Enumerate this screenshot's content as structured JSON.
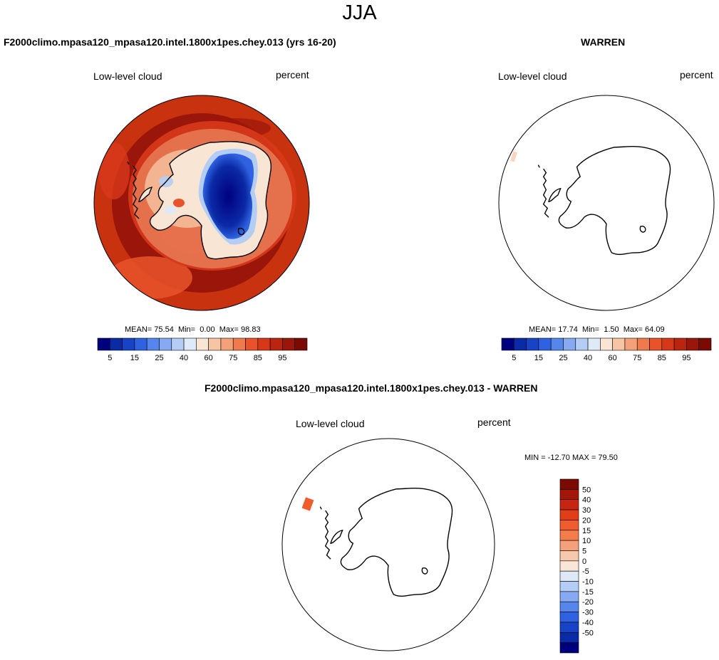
{
  "figure": {
    "title": "JJA"
  },
  "panels": {
    "model": {
      "title": "F2000climo.mpasa120_mpasa120.intel.1800x1pes.chey.013 (yrs 16-20)",
      "variable": "Low-level cloud",
      "units": "percent",
      "stats": {
        "mean": "75.54",
        "min": "0.00",
        "max": "98.83"
      }
    },
    "obs": {
      "title": "WARREN",
      "variable": "Low-level cloud",
      "units": "percent",
      "stats": {
        "mean": "17.74",
        "min": "1.50",
        "max": "64.09"
      }
    },
    "diff": {
      "title": "F2000climo.mpasa120_mpasa120.intel.1800x1pes.chey.013 - WARREN",
      "variable": "Low-level cloud",
      "units": "percent",
      "stats": {
        "min": "-12.70",
        "max": "79.50"
      }
    }
  },
  "labels": {
    "mean": "MEAN=",
    "min": "Min=",
    "max": "Max=",
    "min_upper": "MIN =",
    "max_upper": "MAX ="
  },
  "colorbar_abs": {
    "colors": [
      "#00007f",
      "#0b2aa6",
      "#1744c6",
      "#2f62e0",
      "#5586ec",
      "#86a9f2",
      "#b4cdf5",
      "#dfeaf8",
      "#f9e5d4",
      "#f6c5a4",
      "#f3a178",
      "#ef7a4e",
      "#e8532c",
      "#d8381a",
      "#ba2510",
      "#9b160a",
      "#7a0b04"
    ],
    "tick_labels": [
      "5",
      "15",
      "25",
      "40",
      "60",
      "75",
      "85",
      "95"
    ]
  },
  "colorbar_diff": {
    "colors": [
      "#7a0b04",
      "#a4160a",
      "#c62611",
      "#e03d18",
      "#f15c2c",
      "#f47c4a",
      "#f5a07a",
      "#f7c8ab",
      "#f9e6d6",
      "#dde9f6",
      "#b4cdf5",
      "#86a9f2",
      "#5586ec",
      "#2f62e0",
      "#1744c6",
      "#0b2aa6",
      "#00007f"
    ],
    "tick_labels": [
      "50",
      "40",
      "30",
      "20",
      "15",
      "10",
      "5",
      "0",
      "-5",
      "-10",
      "-15",
      "-20",
      "-30",
      "-40",
      "-50"
    ]
  }
}
